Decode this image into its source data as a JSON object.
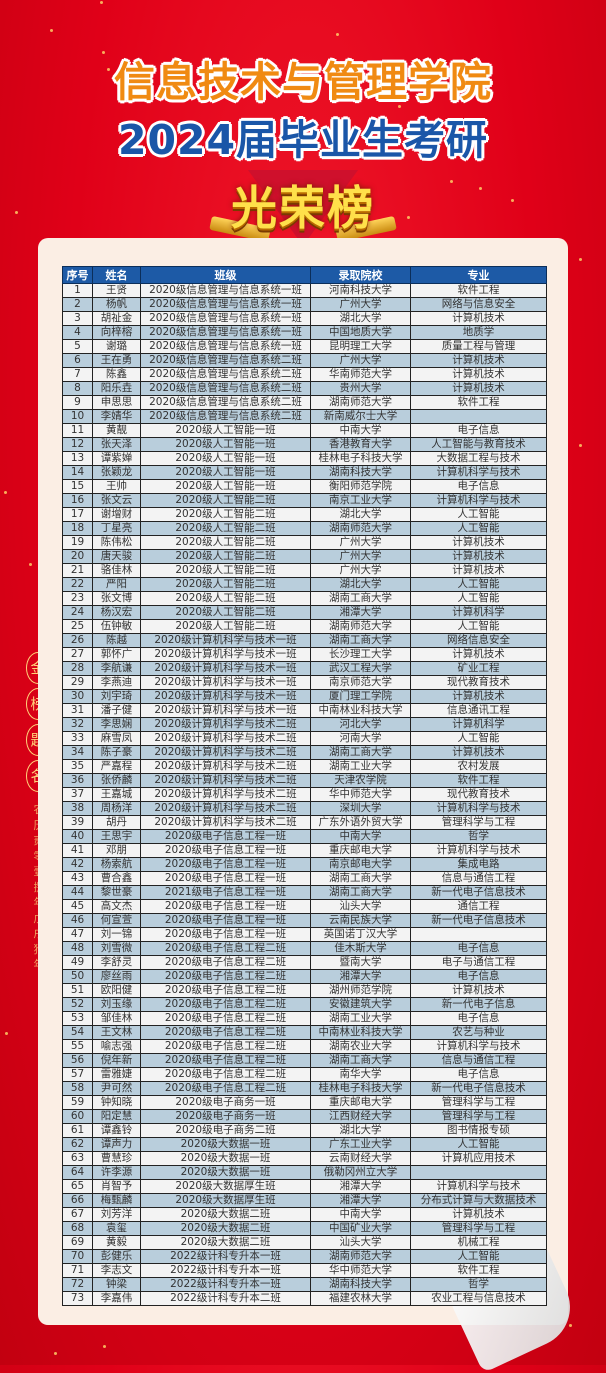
{
  "header": {
    "title_line1": "信息技术与管理学院",
    "title_line2": "2024届毕业生考研",
    "badge": "光荣榜"
  },
  "side_text": {
    "motto": [
      "金",
      "榜",
      "题",
      "名"
    ],
    "lunar_date": "农历贰零壹捌年戊戌狗年"
  },
  "colors": {
    "background": "#e00018",
    "header_blue": "#1d5aa6",
    "title_orange": "#f08a12",
    "title_blue": "#1a56a8",
    "row_even": "#b9cedc",
    "row_odd": "#f3f3f3"
  },
  "table": {
    "columns": [
      "序号",
      "姓名",
      "班级",
      "录取院校",
      "专业"
    ],
    "rows": [
      [
        "1",
        "王贤",
        "2020级信息管理与信息系统一班",
        "河南科技大学",
        "软件工程"
      ],
      [
        "2",
        "杨帆",
        "2020级信息管理与信息系统一班",
        "广州大学",
        "网络与信息安全"
      ],
      [
        "3",
        "胡祉金",
        "2020级信息管理与信息系统一班",
        "湖北大学",
        "计算机技术"
      ],
      [
        "4",
        "向梓榕",
        "2020级信息管理与信息系统一班",
        "中国地质大学",
        "地质学"
      ],
      [
        "5",
        "谢璐",
        "2020级信息管理与信息系统一班",
        "昆明理工大学",
        "质量工程与管理"
      ],
      [
        "6",
        "王在勇",
        "2020级信息管理与信息系统二班",
        "广州大学",
        "计算机技术"
      ],
      [
        "7",
        "陈鑫",
        "2020级信息管理与信息系统二班",
        "华南师范大学",
        "计算机技术"
      ],
      [
        "8",
        "阳乐垚",
        "2020级信息管理与信息系统二班",
        "贵州大学",
        "计算机技术"
      ],
      [
        "9",
        "申思思",
        "2020级信息管理与信息系统二班",
        "湖南师范大学",
        "软件工程"
      ],
      [
        "10",
        "李婧华",
        "2020级信息管理与信息系统二班",
        "新南威尔士大学",
        ""
      ],
      [
        "11",
        "黄靓",
        "2020级人工智能一班",
        "中南大学",
        "电子信息"
      ],
      [
        "12",
        "张天泽",
        "2020级人工智能一班",
        "香港教育大学",
        "人工智能与教育技术"
      ],
      [
        "13",
        "谭紫婵",
        "2020级人工智能一班",
        "桂林电子科技大学",
        "大数据工程与技术"
      ],
      [
        "14",
        "张颖龙",
        "2020级人工智能一班",
        "湖南科技大学",
        "计算机科学与技术"
      ],
      [
        "15",
        "王帅",
        "2020级人工智能一班",
        "衡阳师范学院",
        "电子信息"
      ],
      [
        "16",
        "张文云",
        "2020级人工智能二班",
        "南京工业大学",
        "计算机科学与技术"
      ],
      [
        "17",
        "谢增财",
        "2020级人工智能二班",
        "湖北大学",
        "人工智能"
      ],
      [
        "18",
        "丁星亮",
        "2020级人工智能二班",
        "湖南师范大学",
        "人工智能"
      ],
      [
        "19",
        "陈伟松",
        "2020级人工智能二班",
        "广州大学",
        "计算机技术"
      ],
      [
        "20",
        "唐天骏",
        "2020级人工智能二班",
        "广州大学",
        "计算机技术"
      ],
      [
        "21",
        "骆佳林",
        "2020级人工智能二班",
        "广州大学",
        "计算机技术"
      ],
      [
        "22",
        "严阳",
        "2020级人工智能二班",
        "湖北大学",
        "人工智能"
      ],
      [
        "23",
        "张文博",
        "2020级人工智能二班",
        "湖南工商大学",
        "人工智能"
      ],
      [
        "24",
        "杨汉宏",
        "2020级人工智能二班",
        "湘潭大学",
        "计算机科学"
      ],
      [
        "25",
        "伍钟敏",
        "2020级人工智能二班",
        "湖南师范大学",
        "人工智能"
      ],
      [
        "26",
        "陈越",
        "2020级计算机科学与技术一班",
        "湖南工商大学",
        "网络信息安全"
      ],
      [
        "27",
        "郭怀广",
        "2020级计算机科学与技术一班",
        "长沙理工大学",
        "计算机技术"
      ],
      [
        "28",
        "李航谦",
        "2020级计算机科学与技术一班",
        "武汉工程大学",
        "矿业工程"
      ],
      [
        "29",
        "李燕迪",
        "2020级计算机科学与技术一班",
        "南京师范大学",
        "现代教育技术"
      ],
      [
        "30",
        "刘宇琦",
        "2020级计算机科学与技术一班",
        "厦门理工学院",
        "计算机技术"
      ],
      [
        "31",
        "潘子健",
        "2020级计算机科学与技术一班",
        "中南林业科技大学",
        "信息通讯工程"
      ],
      [
        "32",
        "李思娴",
        "2020级计算机科学与技术二班",
        "河北大学",
        "计算机科学"
      ],
      [
        "33",
        "麻雪凤",
        "2020级计算机科学与技术二班",
        "河南大学",
        "人工智能"
      ],
      [
        "34",
        "陈子豪",
        "2020级计算机科学与技术二班",
        "湖南工商大学",
        "计算机技术"
      ],
      [
        "35",
        "严嘉程",
        "2020级计算机科学与技术二班",
        "湖南工业大学",
        "农村发展"
      ],
      [
        "36",
        "张侨麟",
        "2020级计算机科学与技术二班",
        "天津农学院",
        "软件工程"
      ],
      [
        "37",
        "王嘉城",
        "2020级计算机科学与技术二班",
        "华中师范大学",
        "现代教育技术"
      ],
      [
        "38",
        "周杨洋",
        "2020级计算机科学与技术二班",
        "深圳大学",
        "计算机科学与技术"
      ],
      [
        "39",
        "胡丹",
        "2020级计算机科学与技术二班",
        "广东外语外贸大学",
        "管理科学与工程"
      ],
      [
        "40",
        "王思宇",
        "2020级电子信息工程一班",
        "中南大学",
        "哲学"
      ],
      [
        "41",
        "邓朋",
        "2020级电子信息工程一班",
        "重庆邮电大学",
        "计算机科学与技术"
      ],
      [
        "42",
        "杨索航",
        "2020级电子信息工程一班",
        "南京邮电大学",
        "集成电路"
      ],
      [
        "43",
        "曹合鑫",
        "2020级电子信息工程一班",
        "湖南工商大学",
        "信息与通信工程"
      ],
      [
        "44",
        "黎世豪",
        "2021级电子信息工程一班",
        "湖南工商大学",
        "新一代电子信息技术"
      ],
      [
        "45",
        "高文杰",
        "2020级电子信息工程一班",
        "汕头大学",
        "通信工程"
      ],
      [
        "46",
        "何宣萱",
        "2020级电子信息工程一班",
        "云南民族大学",
        "新一代电子信息技术"
      ],
      [
        "47",
        "刘一锦",
        "2020级电子信息工程一班",
        "英国诺丁汉大学",
        ""
      ],
      [
        "48",
        "刘雪微",
        "2020级电子信息工程二班",
        "佳木斯大学",
        "电子信息"
      ],
      [
        "49",
        "李舒灵",
        "2020级电子信息工程二班",
        "暨南大学",
        "电子与通信工程"
      ],
      [
        "50",
        "廖丝雨",
        "2020级电子信息工程二班",
        "湘潭大学",
        "电子信息"
      ],
      [
        "51",
        "欧阳健",
        "2020级电子信息工程二班",
        "湖州师范学院",
        "计算机技术"
      ],
      [
        "52",
        "刘玉缘",
        "2020级电子信息工程二班",
        "安徽建筑大学",
        "新一代电子信息"
      ],
      [
        "53",
        "邹佳林",
        "2020级电子信息工程二班",
        "湖南工业大学",
        "电子信息"
      ],
      [
        "54",
        "王文林",
        "2020级电子信息工程二班",
        "中南林业科技大学",
        "农艺与种业"
      ],
      [
        "55",
        "喻志强",
        "2020级电子信息工程二班",
        "湖南农业大学",
        "计算机科学与技术"
      ],
      [
        "56",
        "倪年新",
        "2020级电子信息工程二班",
        "湖南工商大学",
        "信息与通信工程"
      ],
      [
        "57",
        "雷雅婕",
        "2020级电子信息工程二班",
        "南华大学",
        "电子信息"
      ],
      [
        "58",
        "尹可然",
        "2020级电子信息工程二班",
        "桂林电子科技大学",
        "新一代电子信息技术"
      ],
      [
        "59",
        "钟知晓",
        "2020级电子商务一班",
        "重庆邮电大学",
        "管理科学与工程"
      ],
      [
        "60",
        "阳定慧",
        "2020级电子商务一班",
        "江西财经大学",
        "管理科学与工程"
      ],
      [
        "61",
        "谭鑫铃",
        "2020级电子商务二班",
        "湖北大学",
        "图书情报专硕"
      ],
      [
        "62",
        "谭声力",
        "2020级大数据一班",
        "广东工业大学",
        "人工智能"
      ],
      [
        "63",
        "曹慧珍",
        "2020级大数据一班",
        "云南财经大学",
        "计算机应用技术"
      ],
      [
        "64",
        "许李源",
        "2020级大数据一班",
        "俄勒冈州立大学",
        ""
      ],
      [
        "65",
        "肖智予",
        "2020级大数据厚生班",
        "湘潭大学",
        "计算机科学与技术"
      ],
      [
        "66",
        "梅甄麟",
        "2020级大数据厚生班",
        "湘潭大学",
        "分布式计算与大数据技术"
      ],
      [
        "67",
        "刘芳洋",
        "2020级大数据二班",
        "中南大学",
        "计算机技术"
      ],
      [
        "68",
        "袁玺",
        "2020级大数据二班",
        "中国矿业大学",
        "管理科学与工程"
      ],
      [
        "69",
        "黄毅",
        "2020级大数据二班",
        "汕头大学",
        "机械工程"
      ],
      [
        "70",
        "彭健乐",
        "2022级计科专升本一班",
        "湖南师范大学",
        "人工智能"
      ],
      [
        "71",
        "李志文",
        "2022级计科专升本一班",
        "华中师范大学",
        "软件工程"
      ],
      [
        "72",
        "钟梁",
        "2022级计科专升本一班",
        "湖南科技大学",
        "哲学"
      ],
      [
        "73",
        "李嘉伟",
        "2022级计科专升本二班",
        "福建农林大学",
        "农业工程与信息技术"
      ]
    ]
  }
}
